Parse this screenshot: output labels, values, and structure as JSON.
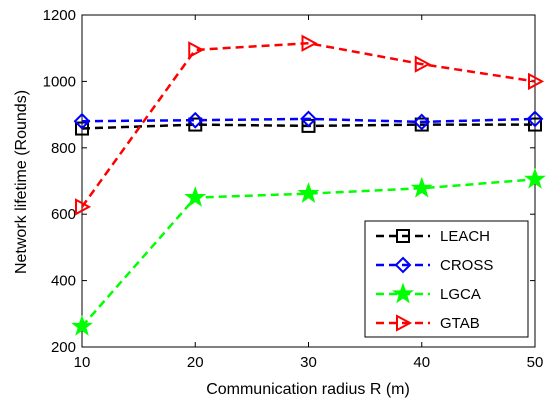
{
  "chart_data": {
    "type": "line",
    "xlabel": "Communication radius R (m)",
    "ylabel": "Network lifetime (Rounds)",
    "x": [
      10,
      20,
      30,
      40,
      50
    ],
    "xlim": [
      10,
      50
    ],
    "ylim": [
      200,
      1200
    ],
    "xticks": [
      "10",
      "20",
      "30",
      "40",
      "50"
    ],
    "yticks": [
      "200",
      "400",
      "600",
      "800",
      "1000",
      "1200"
    ],
    "legend_position": "bottom-right",
    "grid": false,
    "series": [
      {
        "name": "LEACH",
        "values": [
          858,
          870,
          866,
          870,
          870
        ],
        "color": "#000000",
        "marker": "square"
      },
      {
        "name": "CROSS",
        "values": [
          880,
          883,
          887,
          878,
          887
        ],
        "color": "#0000ff",
        "marker": "diamond"
      },
      {
        "name": "LGCA",
        "values": [
          262,
          650,
          662,
          678,
          705
        ],
        "color": "#00ff00",
        "marker": "star"
      },
      {
        "name": "GTAB",
        "values": [
          622,
          1095,
          1115,
          1052,
          1000
        ],
        "color": "#ff0000",
        "marker": "triangle-right"
      }
    ]
  }
}
